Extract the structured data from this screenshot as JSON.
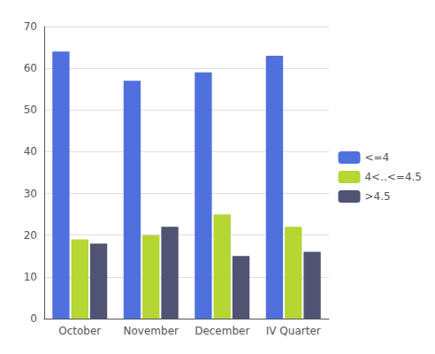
{
  "chart_data": {
    "type": "bar",
    "categories": [
      "October",
      "November",
      "December",
      "IV Quarter"
    ],
    "series": [
      {
        "name": "<=4",
        "values": [
          64,
          57,
          59,
          63
        ]
      },
      {
        "name": "4<..<=4.5",
        "values": [
          19,
          20,
          25,
          22
        ]
      },
      {
        "name": ">4.5",
        "values": [
          18,
          22,
          15,
          16
        ]
      }
    ],
    "ylim": [
      0,
      70
    ],
    "yticks": [
      0,
      10,
      20,
      30,
      40,
      50,
      60,
      70
    ],
    "grid": true,
    "legend": "right"
  }
}
